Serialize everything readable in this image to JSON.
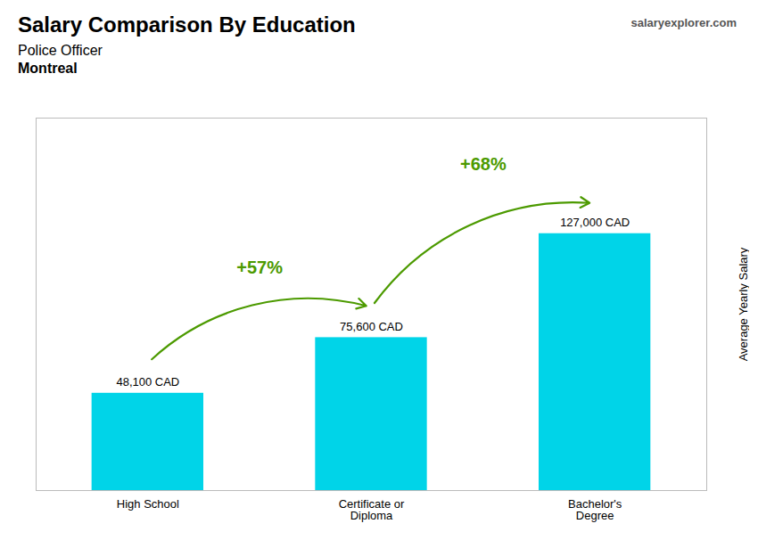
{
  "chart_data": {
    "type": "bar",
    "title": "Salary Comparison By Education",
    "subtitle": [
      "Police Officer",
      "Montreal"
    ],
    "watermark": "salaryexplorer.com",
    "ylabel": "Average Yearly Salary",
    "categories": [
      "High School",
      "Certificate or\nDiploma",
      "Bachelor's\nDegree"
    ],
    "values": [
      48100,
      75600,
      127000
    ],
    "value_labels": [
      "48,100 CAD",
      "75,600 CAD",
      "127,000 CAD"
    ],
    "data_labels": true,
    "annotations": [
      "+57%",
      "+68%"
    ],
    "color": "#00d4e8",
    "ylim": [
      0,
      184150
    ],
    "yticks": [],
    "tick_labels": "x",
    "grid": false
  }
}
